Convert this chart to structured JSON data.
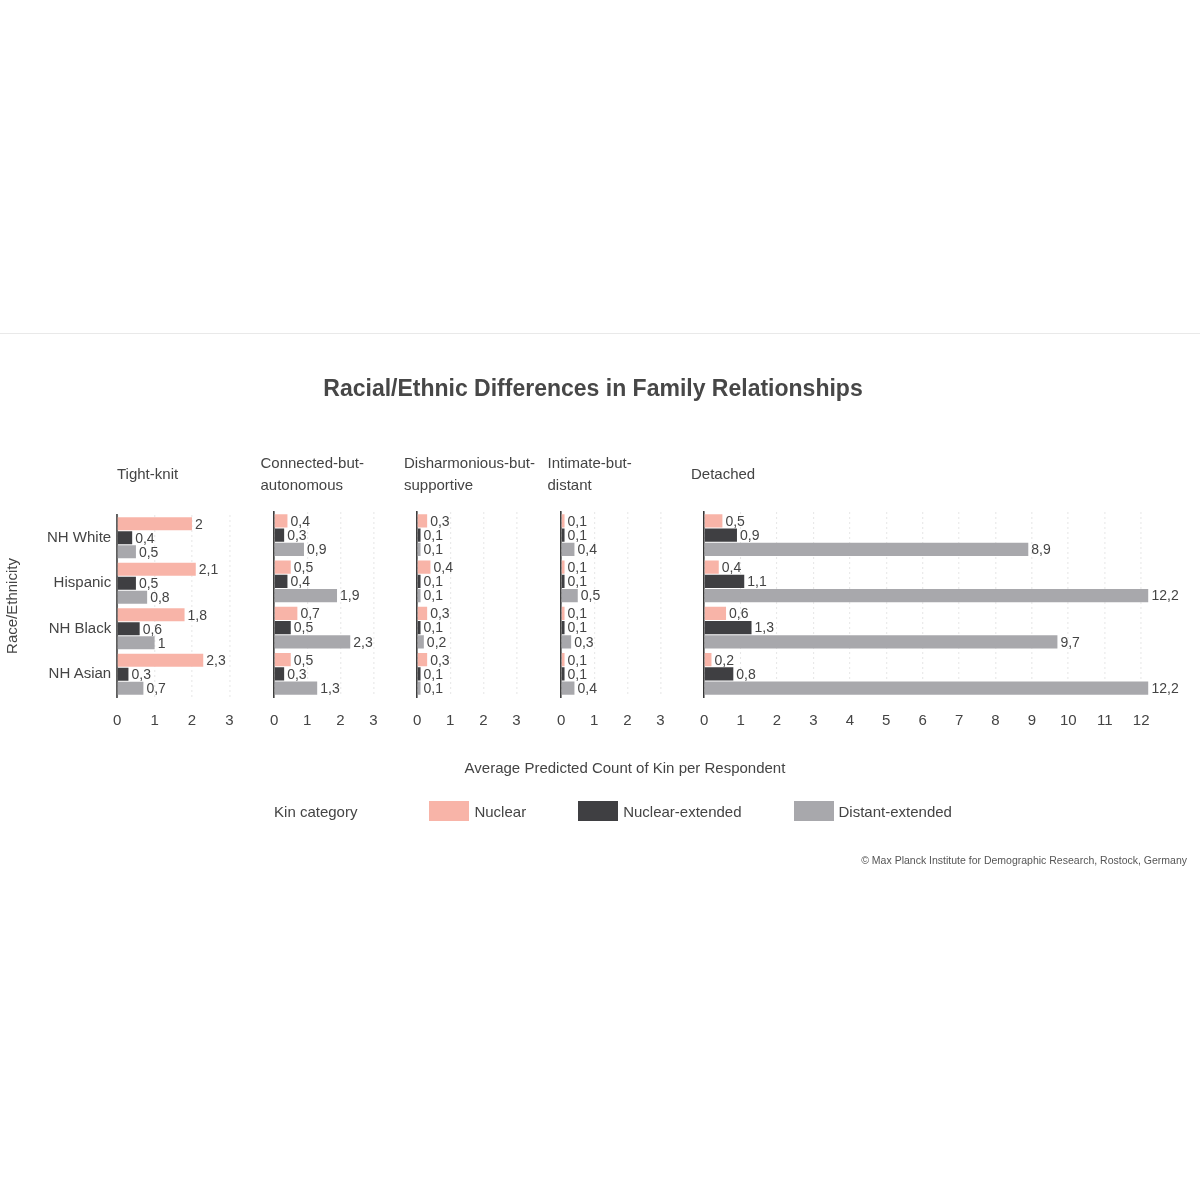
{
  "chart_data": [
    {
      "type": "bar",
      "orientation": "horizontal",
      "subtitle": "Tight-knit",
      "ylabel": "Race/Ethnicity",
      "legend_title": "Kin category",
      "legend": "bottom",
      "annotations": [
        "© Max Planck Institute for Demographic Research, Rostock, Germany"
      ],
      "grid": "x",
      "xlim": [
        0,
        3
      ],
      "xticks": [
        0,
        1,
        2,
        3
      ],
      "categories": [
        "NH White",
        "Hispanic",
        "NH Black",
        "NH Asian"
      ],
      "series": [
        {
          "name": "Nuclear",
          "color": "#f8b4a8",
          "values": [
            2,
            2.1,
            1.8,
            2.3
          ],
          "value_labels": [
            "2",
            "2,1",
            "1,8",
            "2,3"
          ]
        },
        {
          "name": "Nuclear-extended",
          "color": "#3f3f42",
          "values": [
            0.4,
            0.5,
            0.6,
            0.3
          ],
          "value_labels": [
            "0,4",
            "0,5",
            "0,6",
            "0,3"
          ]
        },
        {
          "name": "Distant-extended",
          "color": "#a8a8ac",
          "values": [
            0.5,
            0.8,
            1,
            0.7
          ],
          "value_labels": [
            "0,5",
            "0,8",
            "1",
            "0,7"
          ]
        }
      ]
    },
    {
      "type": "bar",
      "orientation": "horizontal",
      "subtitle": "Connected-but-autonomous",
      "grid": "x",
      "tick_labels": "x",
      "xlim": [
        0,
        3
      ],
      "xticks": [
        0,
        1,
        2,
        3
      ],
      "categories": [
        null,
        null,
        null,
        null
      ],
      "series": [
        {
          "color": "#f8b4a8",
          "values": [
            0.4,
            0.5,
            0.7,
            0.5
          ],
          "value_labels": [
            "0,4",
            "0,5",
            "0,7",
            "0,5"
          ]
        },
        {
          "color": "#3f3f42",
          "values": [
            0.3,
            0.4,
            0.5,
            0.3
          ],
          "value_labels": [
            "0,3",
            "0,4",
            "0,5",
            "0,3"
          ]
        },
        {
          "color": "#a8a8ac",
          "values": [
            0.9,
            1.9,
            2.3,
            1.3
          ],
          "value_labels": [
            "0,9",
            "1,9",
            "2,3",
            "1,3"
          ]
        }
      ]
    },
    {
      "type": "bar",
      "orientation": "horizontal",
      "subtitle": "Disharmonious-but-supportive",
      "grid": "x",
      "tick_labels": "x",
      "xlim": [
        0,
        3
      ],
      "xticks": [
        0,
        1,
        2,
        3
      ],
      "categories": [
        null,
        null,
        null,
        null
      ],
      "series": [
        {
          "color": "#f8b4a8",
          "values": [
            0.3,
            0.4,
            0.3,
            0.3
          ],
          "value_labels": [
            "0,3",
            "0,4",
            "0,3",
            "0,3"
          ]
        },
        {
          "color": "#3f3f42",
          "values": [
            0.1,
            0.1,
            0.1,
            0.1
          ],
          "value_labels": [
            "0,1",
            "0,1",
            "0,1",
            "0,1"
          ]
        },
        {
          "color": "#a8a8ac",
          "values": [
            0.1,
            0.1,
            0.2,
            0.1
          ],
          "value_labels": [
            "0,1",
            "0,1",
            "0,2",
            "0,1"
          ]
        }
      ]
    },
    {
      "type": "bar",
      "orientation": "horizontal",
      "title": "Racial/Ethnic Differences in Family Relationships",
      "subtitle": "Intimate-but-distant",
      "xlabel": "Average Predicted Count of Kin per Respondent",
      "grid": "x",
      "tick_labels": "x",
      "xlim": [
        0,
        3
      ],
      "xticks": [
        0,
        1,
        2,
        3
      ],
      "categories": [
        null,
        null,
        null,
        null
      ],
      "series": [
        {
          "color": "#f8b4a8",
          "values": [
            0.1,
            0.1,
            0.1,
            0.1
          ],
          "value_labels": [
            "0,1",
            "0,1",
            "0,1",
            "0,1"
          ]
        },
        {
          "color": "#3f3f42",
          "values": [
            0.1,
            0.1,
            0.1,
            0.1
          ],
          "value_labels": [
            "0,1",
            "0,1",
            "0,1",
            "0,1"
          ]
        },
        {
          "color": "#a8a8ac",
          "values": [
            0.4,
            0.5,
            0.3,
            0.4
          ],
          "value_labels": [
            "0,4",
            "0,5",
            "0,3",
            "0,4"
          ]
        }
      ]
    },
    {
      "type": "bar",
      "orientation": "horizontal",
      "subtitle": "Detached",
      "grid": "x",
      "tick_labels": "x",
      "xlim": [
        0,
        12.2
      ],
      "xticks": [
        0,
        1,
        2,
        3,
        4,
        5,
        6,
        7,
        8,
        9,
        10,
        11,
        12
      ],
      "categories": [
        null,
        null,
        null,
        null
      ],
      "series": [
        {
          "color": "#f8b4a8",
          "values": [
            0.5,
            0.4,
            0.6,
            0.2
          ],
          "value_labels": [
            "0,5",
            "0,4",
            "0,6",
            "0,2"
          ]
        },
        {
          "color": "#3f3f42",
          "values": [
            0.9,
            1.1,
            1.3,
            0.8
          ],
          "value_labels": [
            "0,9",
            "1,1",
            "1,3",
            "0,8"
          ]
        },
        {
          "color": "#a8a8ac",
          "values": [
            8.9,
            12.2,
            9.7,
            12.2
          ],
          "value_labels": [
            "8,9",
            "12,2",
            "9,7",
            "12,2"
          ]
        }
      ]
    }
  ]
}
